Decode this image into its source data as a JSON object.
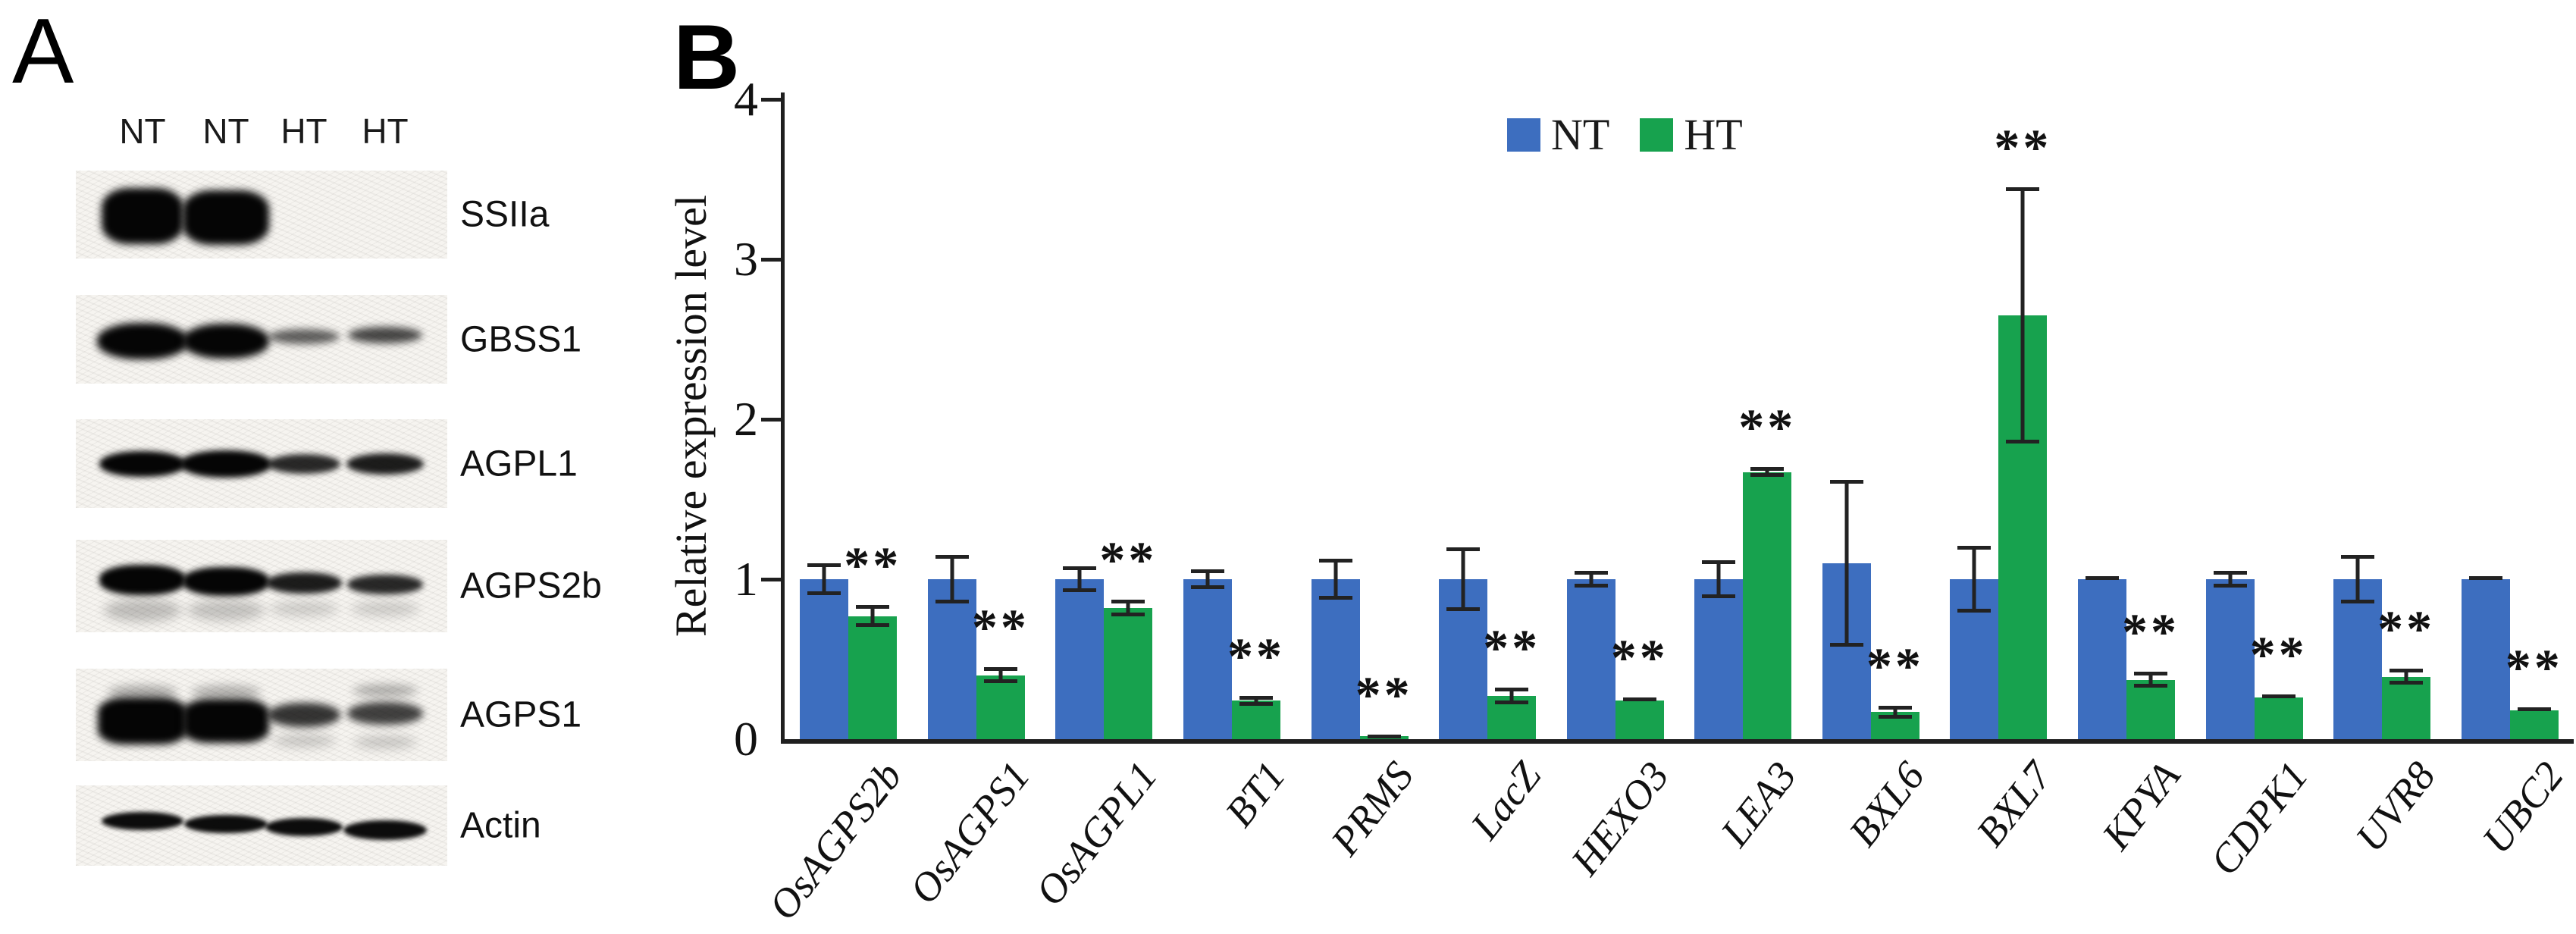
{
  "panel_a": {
    "label": "A",
    "lane_headers": [
      "NT",
      "NT",
      "HT",
      "HT"
    ],
    "blots": [
      {
        "label": "SSIIa",
        "bands": [
          {
            "lane": 0,
            "w": 108,
            "h": 74,
            "dark": 1,
            "dy": 2,
            "blur": 5,
            "r": "34%"
          },
          {
            "lane": 1,
            "w": 114,
            "h": 72,
            "dark": 1,
            "dy": 4,
            "blur": 5,
            "r": "34%"
          }
        ]
      },
      {
        "label": "GBSS1",
        "bands": [
          {
            "lane": 0,
            "w": 120,
            "h": 48,
            "dark": 1,
            "dy": 2,
            "blur": 5,
            "r": "46%"
          },
          {
            "lane": 1,
            "w": 114,
            "h": 46,
            "dark": 1,
            "dy": 2,
            "blur": 5,
            "r": "46%"
          },
          {
            "lane": 2,
            "w": 94,
            "h": 20,
            "dark": 0.62,
            "dy": -4,
            "blur": 5,
            "r": "50%"
          },
          {
            "lane": 3,
            "w": 98,
            "h": 22,
            "dark": 0.72,
            "dy": -6,
            "blur": 5,
            "r": "50%"
          }
        ]
      },
      {
        "label": "AGPL1",
        "bands": [
          {
            "lane": 0,
            "w": 114,
            "h": 34,
            "dark": 1,
            "dy": 0,
            "blur": 4,
            "r": "48%"
          },
          {
            "lane": 1,
            "w": 120,
            "h": 36,
            "dark": 1,
            "dy": 0,
            "blur": 4,
            "r": "48%"
          },
          {
            "lane": 2,
            "w": 96,
            "h": 26,
            "dark": 0.85,
            "dy": 0,
            "blur": 4,
            "r": "50%"
          },
          {
            "lane": 3,
            "w": 102,
            "h": 28,
            "dark": 0.9,
            "dy": 0,
            "blur": 4,
            "r": "50%"
          }
        ]
      },
      {
        "label": "AGPS2b",
        "bands": [
          {
            "lane": 0,
            "w": 114,
            "h": 40,
            "dark": 1,
            "dy": -8,
            "blur": 4,
            "r": "44%"
          },
          {
            "lane": 1,
            "w": 114,
            "h": 38,
            "dark": 1,
            "dy": -6,
            "blur": 4,
            "r": "44%"
          },
          {
            "lane": 2,
            "w": 100,
            "h": 28,
            "dark": 0.9,
            "dy": -4,
            "blur": 4,
            "r": "48%"
          },
          {
            "lane": 3,
            "w": 100,
            "h": 26,
            "dark": 0.85,
            "dy": -2,
            "blur": 4,
            "r": "48%"
          },
          {
            "lane": 0,
            "w": 102,
            "h": 30,
            "dark": 0.22,
            "dy": 32,
            "blur": 7,
            "r": "50%"
          },
          {
            "lane": 1,
            "w": 102,
            "h": 28,
            "dark": 0.2,
            "dy": 32,
            "blur": 7,
            "r": "50%"
          },
          {
            "lane": 2,
            "w": 90,
            "h": 20,
            "dark": 0.16,
            "dy": 30,
            "blur": 7,
            "r": "50%"
          },
          {
            "lane": 3,
            "w": 90,
            "h": 20,
            "dark": 0.16,
            "dy": 30,
            "blur": 7,
            "r": "50%"
          }
        ]
      },
      {
        "label": "AGPS1",
        "bands": [
          {
            "lane": 0,
            "w": 118,
            "h": 62,
            "dark": 1,
            "dy": 8,
            "blur": 5,
            "r": "30%"
          },
          {
            "lane": 1,
            "w": 114,
            "h": 58,
            "dark": 1,
            "dy": 8,
            "blur": 5,
            "r": "30%"
          },
          {
            "lane": 2,
            "w": 96,
            "h": 32,
            "dark": 0.8,
            "dy": 0,
            "blur": 5,
            "r": "48%"
          },
          {
            "lane": 3,
            "w": 100,
            "h": 30,
            "dark": 0.75,
            "dy": -2,
            "blur": 5,
            "r": "48%"
          },
          {
            "lane": 0,
            "w": 92,
            "h": 18,
            "dark": 0.3,
            "dy": -30,
            "blur": 6,
            "r": "50%"
          },
          {
            "lane": 1,
            "w": 92,
            "h": 18,
            "dark": 0.28,
            "dy": -30,
            "blur": 6,
            "r": "50%"
          },
          {
            "lane": 3,
            "w": 86,
            "h": 16,
            "dark": 0.3,
            "dy": -32,
            "blur": 6,
            "r": "50%"
          },
          {
            "lane": 2,
            "w": 84,
            "h": 16,
            "dark": 0.2,
            "dy": 34,
            "blur": 7,
            "r": "50%"
          },
          {
            "lane": 3,
            "w": 84,
            "h": 16,
            "dark": 0.2,
            "dy": 36,
            "blur": 7,
            "r": "50%"
          }
        ]
      },
      {
        "label": "Actin",
        "bands": [
          {
            "lane": 0,
            "w": 108,
            "h": 24,
            "dark": 0.97,
            "dy": -6,
            "blur": 3,
            "r": "50%"
          },
          {
            "lane": 1,
            "w": 110,
            "h": 24,
            "dark": 0.97,
            "dy": -2,
            "blur": 3,
            "r": "50%"
          },
          {
            "lane": 2,
            "w": 102,
            "h": 24,
            "dark": 0.97,
            "dy": 2,
            "blur": 3,
            "r": "50%"
          },
          {
            "lane": 3,
            "w": 110,
            "h": 26,
            "dark": 0.97,
            "dy": 6,
            "blur": 3,
            "r": "50%"
          }
        ]
      }
    ]
  },
  "panel_b": {
    "label": "B"
  },
  "chart_data": {
    "type": "bar",
    "title": "",
    "xlabel": "",
    "ylabel": "Relative expression level",
    "ylim": [
      0,
      4
    ],
    "yticks": [
      0,
      1,
      2,
      3,
      4
    ],
    "grid": false,
    "legend_position": "top-center",
    "categories": [
      "OsAGPS2b",
      "OsAGPS1",
      "OsAGPL1",
      "BT1",
      "PRMS",
      "LacZ",
      "HEXO3",
      "LEA3",
      "BXL6",
      "BXL7",
      "KPYA",
      "CDPK1",
      "UVR8",
      "UBC2"
    ],
    "series": [
      {
        "name": "NT",
        "color": "#3D6EBF",
        "values": [
          1.0,
          1.0,
          1.0,
          1.0,
          1.0,
          1.0,
          1.0,
          1.0,
          1.1,
          1.0,
          1.0,
          1.0,
          1.0,
          1.0
        ],
        "errors": [
          0.1,
          0.15,
          0.08,
          0.06,
          0.13,
          0.2,
          0.05,
          0.12,
          0.52,
          0.21,
          0.02,
          0.05,
          0.15,
          0.02
        ]
      },
      {
        "name": "HT",
        "color": "#17A24E",
        "values": [
          0.77,
          0.4,
          0.82,
          0.24,
          0.02,
          0.27,
          0.24,
          1.67,
          0.17,
          2.65,
          0.37,
          0.26,
          0.39,
          0.18
        ],
        "errors": [
          0.07,
          0.05,
          0.05,
          0.03,
          0.01,
          0.05,
          0.02,
          0.03,
          0.04,
          0.8,
          0.05,
          0.02,
          0.05,
          0.02
        ]
      }
    ],
    "significance": {
      "series": "HT",
      "markers": [
        "**",
        "**",
        "**",
        "**",
        "**",
        "**",
        "**",
        "**",
        "**",
        "**",
        "**",
        "**",
        "**",
        "**"
      ]
    }
  }
}
